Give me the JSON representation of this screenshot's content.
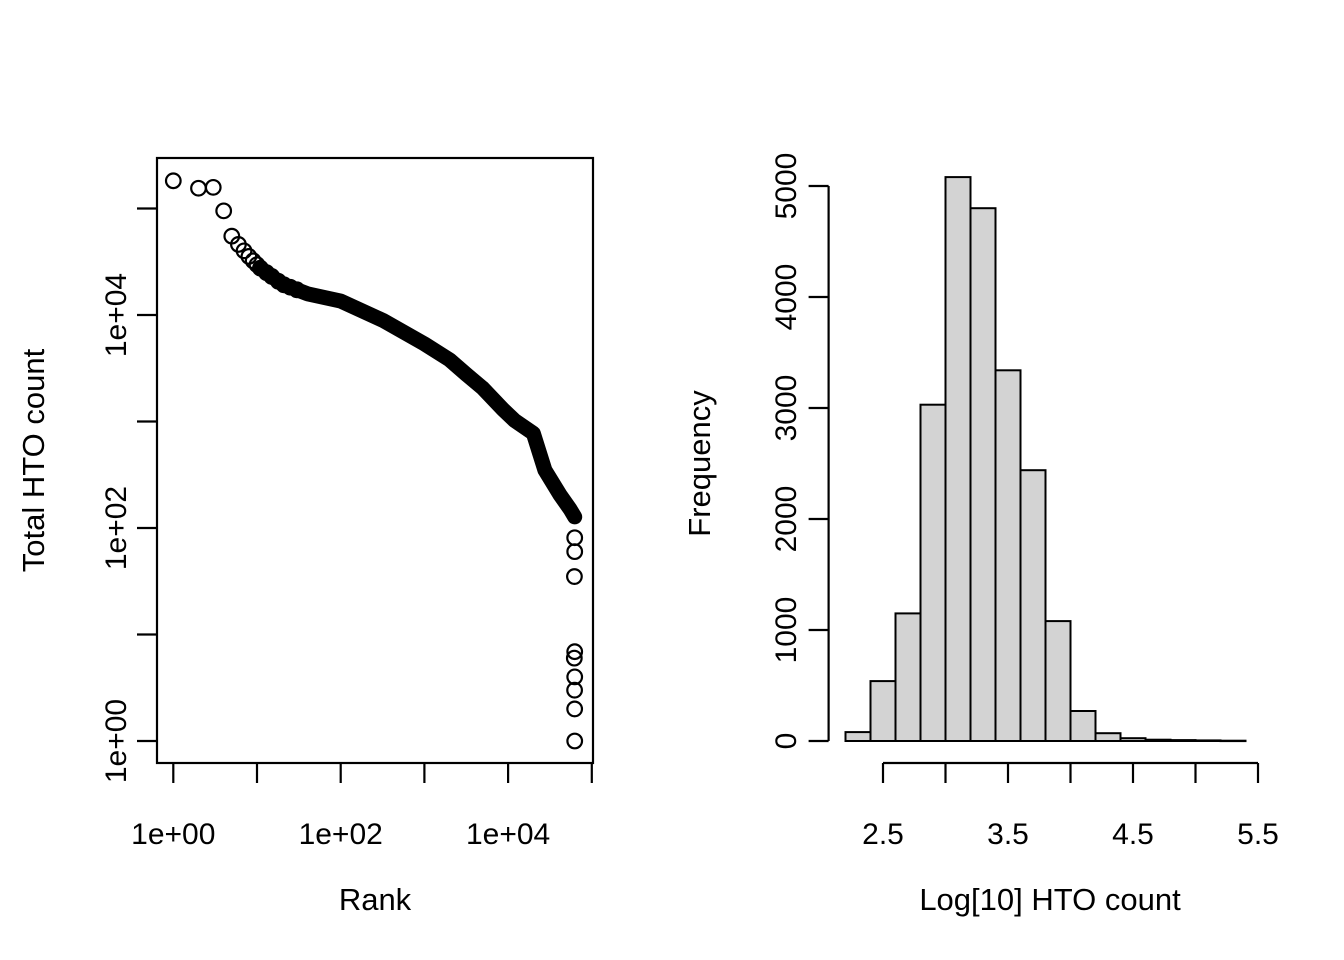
{
  "figure": {
    "background": "#ffffff",
    "foreground": "#000000"
  },
  "chart_data": [
    {
      "type": "scatter",
      "name": "barcode-rank-plot",
      "title": "",
      "xlabel": "Rank",
      "ylabel": "Total HTO count",
      "xscale": "log",
      "yscale": "log",
      "xlim": [
        0.8,
        200000
      ],
      "ylim": [
        0.8,
        300000
      ],
      "grid": false,
      "point_style": "open-circle",
      "point_color": "#000000",
      "x_ticks": [
        {
          "value": 1,
          "label": "1e+00"
        },
        {
          "value": 10,
          "label": ""
        },
        {
          "value": 100,
          "label": "1e+02"
        },
        {
          "value": 1000,
          "label": ""
        },
        {
          "value": 10000,
          "label": "1e+04"
        },
        {
          "value": 100000,
          "label": ""
        }
      ],
      "y_ticks": [
        {
          "value": 1,
          "label": "1e+00"
        },
        {
          "value": 10,
          "label": ""
        },
        {
          "value": 100,
          "label": "1e+02"
        },
        {
          "value": 1000,
          "label": ""
        },
        {
          "value": 10000,
          "label": "1e+04"
        },
        {
          "value": 100000,
          "label": ""
        }
      ],
      "curve_points": [
        [
          1,
          182000
        ],
        [
          2,
          155000
        ],
        [
          3,
          158000
        ],
        [
          4,
          95000
        ],
        [
          5,
          55000
        ],
        [
          6,
          46000
        ],
        [
          8,
          35500
        ],
        [
          11,
          27500
        ],
        [
          20,
          19500
        ],
        [
          40,
          15800
        ],
        [
          100,
          13500
        ],
        [
          320,
          8900
        ],
        [
          1000,
          5350
        ],
        [
          2000,
          3800
        ],
        [
          3200,
          2750
        ],
        [
          5000,
          2050
        ],
        [
          8700,
          1300
        ],
        [
          12000,
          1020
        ],
        [
          20000,
          775
        ],
        [
          27500,
          350
        ],
        [
          41700,
          205
        ],
        [
          55000,
          150
        ],
        [
          62500,
          127
        ]
      ],
      "band_from_rank": 9,
      "sparse_ranks": [
        1,
        2,
        3,
        4,
        5,
        6,
        7,
        8,
        9,
        10,
        11,
        13,
        15,
        18,
        21,
        25,
        30
      ],
      "outliers": [
        [
          62500,
          81
        ],
        [
          62500,
          60
        ],
        [
          62000,
          35
        ],
        [
          62500,
          6.9
        ],
        [
          61800,
          6.0
        ],
        [
          62500,
          4.0
        ],
        [
          62300,
          3.0
        ],
        [
          62400,
          2.0
        ],
        [
          62500,
          1.0
        ]
      ]
    },
    {
      "type": "bar",
      "subtype": "histogram",
      "name": "hto-count-histogram",
      "title": "",
      "xlabel": "Log[10] HTO count",
      "ylabel": "Frequency",
      "bin_start": 2.2,
      "bin_width": 0.2,
      "counts": [
        80,
        540,
        1150,
        3030,
        5080,
        4800,
        3340,
        2440,
        1080,
        270,
        70,
        25,
        12,
        8,
        5,
        3
      ],
      "bin_edges": [
        2.2,
        2.4,
        2.6,
        2.8,
        3.0,
        3.2,
        3.4,
        3.6,
        3.8,
        4.0,
        4.2,
        4.4,
        4.6,
        4.8,
        5.0,
        5.2,
        5.4
      ],
      "ylim": [
        0,
        5080
      ],
      "grid": false,
      "bar_fill": "#d3d3d3",
      "bar_stroke": "#000000",
      "x_ticks": [
        {
          "value": 2.5,
          "label": "2.5"
        },
        {
          "value": 3.0,
          "label": ""
        },
        {
          "value": 3.5,
          "label": "3.5"
        },
        {
          "value": 4.0,
          "label": ""
        },
        {
          "value": 4.5,
          "label": "4.5"
        },
        {
          "value": 5.0,
          "label": ""
        },
        {
          "value": 5.5,
          "label": "5.5"
        }
      ],
      "y_ticks": [
        {
          "value": 0,
          "label": "0"
        },
        {
          "value": 1000,
          "label": "1000"
        },
        {
          "value": 2000,
          "label": "2000"
        },
        {
          "value": 3000,
          "label": "3000"
        },
        {
          "value": 4000,
          "label": "4000"
        },
        {
          "value": 5000,
          "label": "5000"
        }
      ]
    }
  ]
}
